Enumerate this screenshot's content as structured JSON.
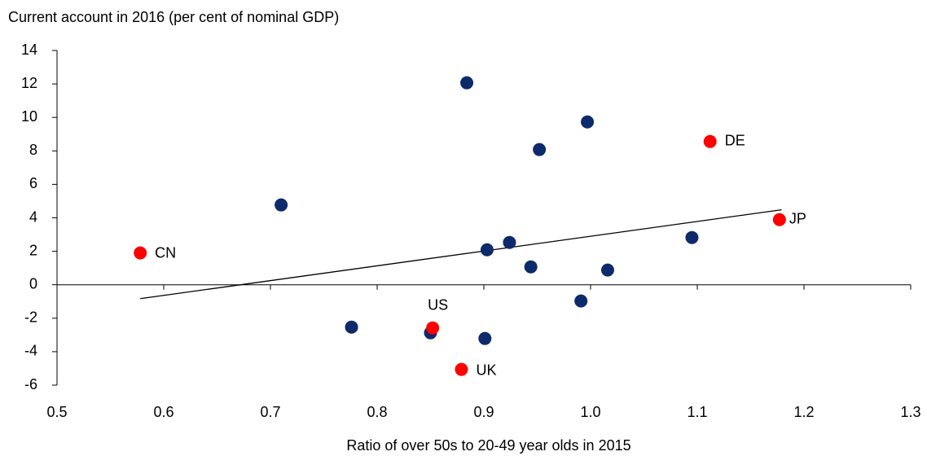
{
  "chart_data": {
    "type": "scatter",
    "title": "Current account in 2016 (per cent of nominal GDP)",
    "x_label": "Ratio of over 50s to 20-49 year olds in 2015",
    "xlim": [
      0.5,
      1.3
    ],
    "xticks": [
      0.5,
      0.6,
      0.7,
      0.8,
      0.9,
      {
        "value": 1,
        "label": "1.0"
      },
      1.1,
      1.2,
      1.3
    ],
    "ylim": [
      -6,
      14
    ],
    "yticks": [
      -6,
      -4,
      -2,
      0,
      2,
      4,
      6,
      8,
      10,
      12,
      14
    ],
    "series": [
      {
        "color": "#0d2a6b",
        "x": [
          0.884,
          0.997,
          0.952,
          0.71,
          0.903,
          0.924,
          0.944,
          1.016,
          1.095,
          0.991,
          0.776,
          0.85,
          0.901
        ],
        "y": [
          12.07,
          9.73,
          8.08,
          4.77,
          2.09,
          2.53,
          1.07,
          0.88,
          2.82,
          -0.97,
          -2.53,
          -2.87,
          -3.21
        ]
      },
      {
        "color": "#ff0000",
        "x": [
          0.578,
          0.852,
          0.879,
          1.112,
          1.177
        ],
        "y": [
          1.9,
          -2.58,
          -5.06,
          8.56,
          3.89
        ],
        "labels": [
          "CN",
          "US",
          "UK",
          "DE",
          "JP"
        ]
      }
    ],
    "trend_line": {
      "color": "#000000",
      "x": [
        0.578,
        1.179
      ],
      "y": [
        -0.83,
        4.48
      ]
    }
  }
}
